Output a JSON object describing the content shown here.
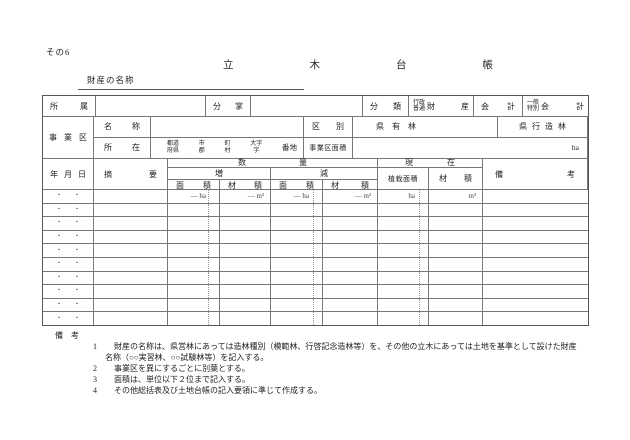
{
  "colors": {
    "border": "#777777",
    "outer_border": "#555555",
    "text": "#222222",
    "dotted_rule": "#999999"
  },
  "page": {
    "corner_label": "その6",
    "title": "立木台帳",
    "property_name_label": "財産の名称"
  },
  "info_table": {
    "affiliation_label": "所属",
    "affiliation_value": "",
    "division_label": "分掌",
    "division_value": "",
    "classification_label": "分類",
    "admin_ordinary": {
      "top": "行政",
      "bottom": "普通",
      "suffix": "財産"
    },
    "account_label": "会計",
    "general_special": {
      "top": "一般",
      "bottom": "特別",
      "suffix": "会計"
    },
    "business_zone_label": "事業区",
    "name_label": "名称",
    "name_value": "",
    "kubetsu_label": "区別",
    "kubetsu_option1": "県有林",
    "kubetsu_option2": "県行造林",
    "location_label": "所在",
    "address_parts": [
      {
        "top": "都道",
        "bottom": "府県"
      },
      {
        "top": "市",
        "bottom": "郡"
      },
      {
        "top": "町",
        "bottom": "村"
      },
      {
        "top": "大字",
        "bottom": "字"
      },
      {
        "single": "番地"
      }
    ],
    "zone_area_label": "事業区面積",
    "zone_area_unit": "ha"
  },
  "main_table": {
    "headers": {
      "date": "年月日",
      "summary": "摘要",
      "quantity": "数量",
      "increase": "増",
      "decrease": "減",
      "area": "面積",
      "volume": "材積",
      "current": "現在",
      "planted_area": "植栽面積",
      "current_volume": "材積",
      "remarks": "備考"
    },
    "unit_row": {
      "inc_area": "— ha",
      "inc_volume": "— m³",
      "dec_area": "— ha",
      "dec_volume": "— m³",
      "planted_area": "ha",
      "current_volume": "m³"
    },
    "date_dot": "・",
    "row_count": 10
  },
  "notes": {
    "heading": "備考",
    "items": [
      {
        "num": "1",
        "lines": [
          "財産の名称は、県営林にあっては造林種別（模範林、行啓記念造林等）を、その他の立木にあっては土地を基準として設けた財産",
          "名称（○○実習林、○○試験林等）を記入する。"
        ]
      },
      {
        "num": "2",
        "lines": [
          "事業区を異にするごとに別葉とする。"
        ]
      },
      {
        "num": "3",
        "lines": [
          "面積は、単位以下２位まで記入する。"
        ]
      },
      {
        "num": "4",
        "lines": [
          "その他総括表及び土地台帳の記入要領に準じて作成する。"
        ]
      }
    ]
  }
}
